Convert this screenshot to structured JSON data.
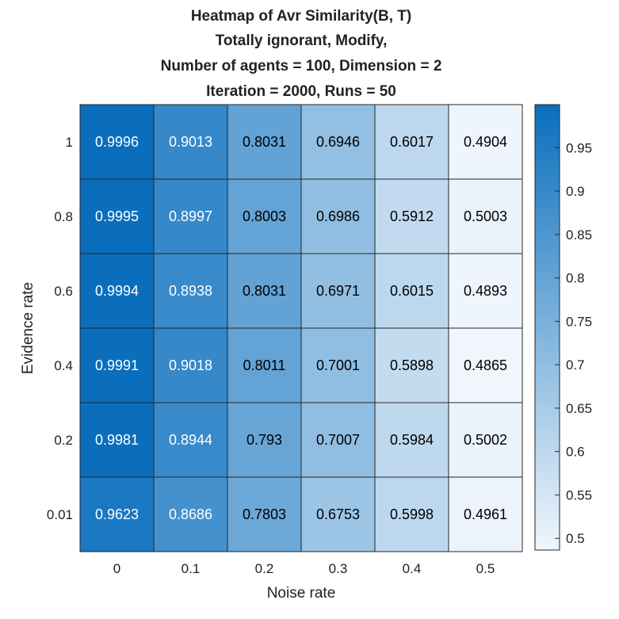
{
  "chart_data": {
    "type": "heatmap",
    "title_lines": [
      "Heatmap of Avr Similarity(B, T)",
      "Totally ignorant, Modify,",
      "Number of agents = 100, Dimension = 2",
      "Iteration = 2000, Runs = 50"
    ],
    "xlabel": "Noise rate",
    "ylabel": "Evidence rate",
    "x_categories": [
      "0",
      "0.1",
      "0.2",
      "0.3",
      "0.4",
      "0.5"
    ],
    "y_categories": [
      "1",
      "0.8",
      "0.6",
      "0.4",
      "0.2",
      "0.01"
    ],
    "values": [
      [
        "0.9996",
        "0.9013",
        "0.8031",
        "0.6946",
        "0.6017",
        "0.4904"
      ],
      [
        "0.9995",
        "0.8997",
        "0.8003",
        "0.6986",
        "0.5912",
        "0.5003"
      ],
      [
        "0.9994",
        "0.8938",
        "0.8031",
        "0.6971",
        "0.6015",
        "0.4893"
      ],
      [
        "0.9991",
        "0.9018",
        "0.8011",
        "0.7001",
        "0.5898",
        "0.4865"
      ],
      [
        "0.9981",
        "0.8944",
        "0.793",
        "0.7007",
        "0.5984",
        "0.5002"
      ],
      [
        "0.9623",
        "0.8686",
        "0.7803",
        "0.6753",
        "0.5998",
        "0.4961"
      ]
    ],
    "colorbar": {
      "ticks": [
        "0.5",
        "0.55",
        "0.6",
        "0.65",
        "0.7",
        "0.75",
        "0.8",
        "0.85",
        "0.9",
        "0.95"
      ],
      "range": [
        0.4865,
        0.9996
      ],
      "color_low": "#f0f6fc",
      "color_high": "#0a6ebd"
    },
    "grid": true,
    "colors": {
      "text_dark": "#000000",
      "text_light": "#ffffff",
      "cell_border": "#262626"
    }
  }
}
